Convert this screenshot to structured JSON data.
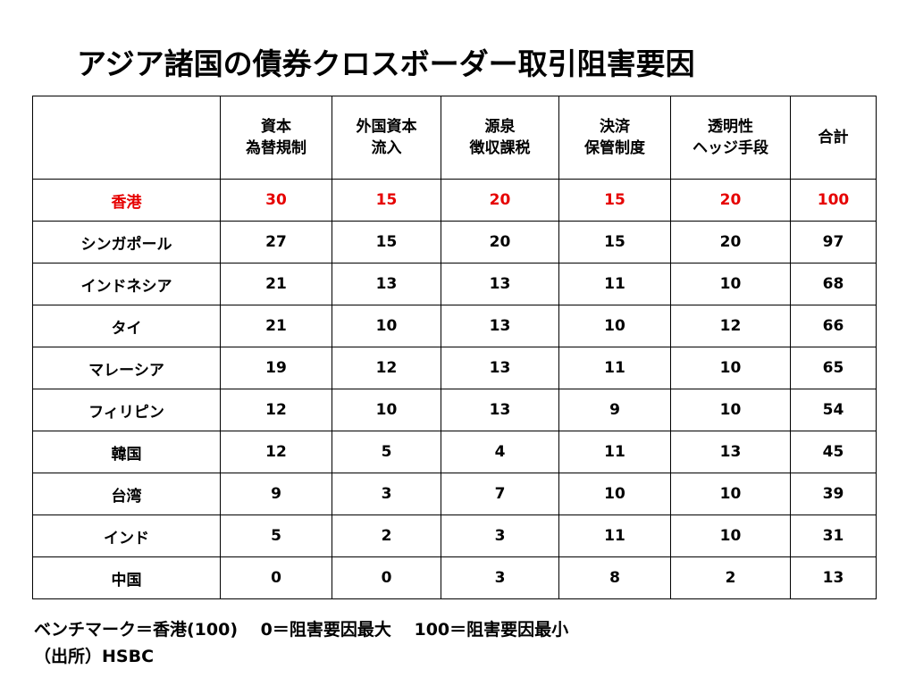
{
  "slide": {
    "title": "アジア諸国の債券クロスボーダー取引阻害要因"
  },
  "table": {
    "corner": "",
    "columns": [
      {
        "line1": "資本",
        "line2": "為替規制"
      },
      {
        "line1": "外国資本",
        "line2": "流入"
      },
      {
        "line1": "源泉",
        "line2": "徴収課税"
      },
      {
        "line1": "決済",
        "line2": "保管制度"
      },
      {
        "line1": "透明性",
        "line2": "ヘッジ手段"
      },
      {
        "line1": "合計",
        "line2": ""
      }
    ],
    "rows": [
      {
        "name": "香港",
        "values": [
          "30",
          "15",
          "20",
          "15",
          "20",
          "100"
        ],
        "highlight": true
      },
      {
        "name": "シンガポール",
        "values": [
          "27",
          "15",
          "20",
          "15",
          "20",
          "97"
        ]
      },
      {
        "name": "インドネシア",
        "values": [
          "21",
          "13",
          "13",
          "11",
          "10",
          "68"
        ]
      },
      {
        "name": "タイ",
        "values": [
          "21",
          "10",
          "13",
          "10",
          "12",
          "66"
        ]
      },
      {
        "name": "マレーシア",
        "values": [
          "19",
          "12",
          "13",
          "11",
          "10",
          "65"
        ]
      },
      {
        "name": "フィリピン",
        "values": [
          "12",
          "10",
          "13",
          "9",
          "10",
          "54"
        ]
      },
      {
        "name": "韓国",
        "values": [
          "12",
          "5",
          "4",
          "11",
          "13",
          "45"
        ]
      },
      {
        "name": "台湾",
        "values": [
          "9",
          "3",
          "7",
          "10",
          "10",
          "39"
        ]
      },
      {
        "name": "インド",
        "values": [
          "5",
          "2",
          "3",
          "11",
          "10",
          "31"
        ]
      },
      {
        "name": "中国",
        "values": [
          "0",
          "0",
          "3",
          "8",
          "2",
          "13"
        ]
      }
    ]
  },
  "notes": {
    "line1": "ベンチマーク＝香港(100)　 0＝阻害要因最大　 100＝阻害要因最小",
    "line2": "（出所）HSBC"
  },
  "colors": {
    "highlight": "#e60000",
    "text": "#000000",
    "border": "#000000",
    "background": "#ffffff"
  }
}
